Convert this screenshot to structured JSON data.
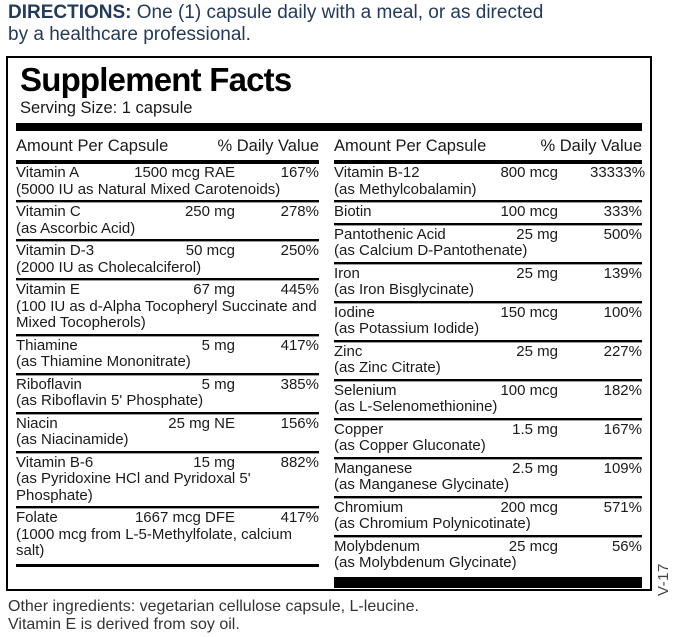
{
  "directions": {
    "label": "DIRECTIONS:",
    "line1": "One (1) capsule daily with a meal, or as directed",
    "line2": "by a healthcare professional."
  },
  "panel": {
    "title": "Supplement Facts",
    "serving_size": "Serving Size: 1 capsule",
    "column_header": {
      "amount": "Amount Per Capsule",
      "dv": "% Daily Value"
    },
    "left_rows": [
      {
        "name": "Vitamin A",
        "amount": "1500 mcg RAE",
        "dv": "167%",
        "sub": "(5000 IU as Natural Mixed Carotenoids)"
      },
      {
        "name": "Vitamin C",
        "amount": "250 mg",
        "dv": "278%",
        "sub": "(as Ascorbic Acid)"
      },
      {
        "name": "Vitamin D-3",
        "amount": "50 mcg",
        "dv": "250%",
        "sub": "(2000 IU as Cholecalciferol)"
      },
      {
        "name": "Vitamin E",
        "amount": "67 mg",
        "dv": "445%",
        "sub": "(100 IU as d-Alpha Tocopheryl Succinate and Mixed Tocopherols)"
      },
      {
        "name": "Thiamine",
        "amount": "5 mg",
        "dv": "417%",
        "sub": "(as Thiamine Mononitrate)"
      },
      {
        "name": "Riboflavin",
        "amount": "5 mg",
        "dv": "385%",
        "sub": "(as Riboflavin 5' Phosphate)"
      },
      {
        "name": "Niacin",
        "amount": "25 mg NE",
        "dv": "156%",
        "sub": "(as Niacinamide)"
      },
      {
        "name": "Vitamin B-6",
        "amount": "15 mg",
        "dv": "882%",
        "sub": "(as Pyridoxine HCl and Pyridoxal 5' Phosphate)"
      },
      {
        "name": "Folate",
        "amount": "1667 mcg DFE",
        "dv": "417%",
        "sub": "(1000 mcg from L-5-Methylfolate, calcium salt)"
      }
    ],
    "right_rows": [
      {
        "name": "Vitamin B-12",
        "amount": "800 mcg",
        "dv": "33333%",
        "sub": "(as Methylcobalamin)"
      },
      {
        "name": "Biotin",
        "amount": "100 mcg",
        "dv": "333%",
        "sub": ""
      },
      {
        "name": "Pantothenic Acid",
        "amount": "25 mg",
        "dv": "500%",
        "sub": "(as Calcium D-Pantothenate)"
      },
      {
        "name": "Iron",
        "amount": "25 mg",
        "dv": "139%",
        "sub": "(as Iron Bisglycinate)"
      },
      {
        "name": "Iodine",
        "amount": "150 mcg",
        "dv": "100%",
        "sub": "(as Potassium Iodide)"
      },
      {
        "name": "Zinc",
        "amount": "25 mg",
        "dv": "227%",
        "sub": "(as Zinc Citrate)"
      },
      {
        "name": "Selenium",
        "amount": "100 mcg",
        "dv": "182%",
        "sub": "(as L-Selenomethionine)"
      },
      {
        "name": "Copper",
        "amount": "1.5 mg",
        "dv": "167%",
        "sub": "(as Copper Gluconate)"
      },
      {
        "name": "Manganese",
        "amount": "2.5 mg",
        "dv": "109%",
        "sub": "(as Manganese Glycinate)"
      },
      {
        "name": "Chromium",
        "amount": "200 mcg",
        "dv": "571%",
        "sub": "(as Chromium Polynicotinate)"
      },
      {
        "name": "Molybdenum",
        "amount": "25 mcg",
        "dv": "56%",
        "sub": "(as Molybdenum Glycinate)"
      }
    ],
    "side_code": "V-17"
  },
  "footer": {
    "line1": "Other ingredients: vegetarian cellulose capsule, L-leucine.",
    "line2": "Vitamin E is derived from soy oil."
  },
  "colors": {
    "directions_text": "#243a5a",
    "label_text": "#1a1a1a",
    "rule": "#000000",
    "side_code_text": "#42464b"
  }
}
